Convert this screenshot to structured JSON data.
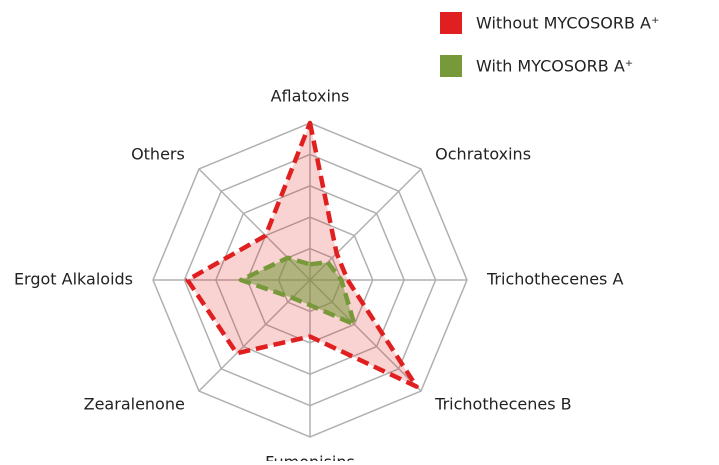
{
  "chart_data": {
    "type": "radar",
    "categories": [
      "Aflatoxins",
      "Ochratoxins",
      "Trichothecenes A",
      "Trichothecenes B",
      "Fumonisins",
      "Zearalenone",
      "Ergot Alkaloids",
      "Others"
    ],
    "series": [
      {
        "name": "Without MYCOSORB A⁺",
        "color": "#e02020",
        "values": [
          5,
          1.2,
          1.2,
          4.8,
          1.8,
          3.3,
          3.9,
          2.0
        ]
      },
      {
        "name": "With MYCOSORB A⁺",
        "color": "#77993a",
        "values": [
          0.5,
          0.8,
          1.0,
          2.0,
          0.8,
          0.8,
          2.2,
          1.0
        ]
      }
    ],
    "rlim": [
      0,
      5
    ],
    "rticks": [
      1,
      2,
      3,
      4,
      5
    ],
    "grid": true,
    "legend": "top-right"
  }
}
